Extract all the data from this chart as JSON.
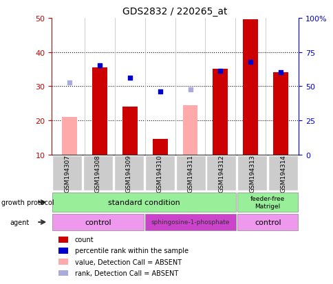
{
  "title": "GDS2832 / 220265_at",
  "samples": [
    "GSM194307",
    "GSM194308",
    "GSM194309",
    "GSM194310",
    "GSM194311",
    "GSM194312",
    "GSM194313",
    "GSM194314"
  ],
  "count_values": [
    null,
    35.5,
    24.0,
    14.5,
    null,
    35.0,
    49.5,
    34.0
  ],
  "count_absent_values": [
    21.0,
    null,
    null,
    null,
    24.5,
    null,
    null,
    null
  ],
  "rank_values": [
    null,
    36.0,
    32.5,
    28.5,
    null,
    34.5,
    37.0,
    34.0
  ],
  "rank_absent_values": [
    31.0,
    null,
    null,
    null,
    29.0,
    null,
    null,
    null
  ],
  "ylim_left": [
    10,
    50
  ],
  "ylim_right": [
    0,
    100
  ],
  "yticks_left": [
    10,
    20,
    30,
    40,
    50
  ],
  "yticks_right": [
    0,
    25,
    50,
    75,
    100
  ],
  "ytick_labels_right": [
    "0",
    "25",
    "50",
    "75",
    "100%"
  ],
  "legend_items": [
    {
      "color": "#cc0000",
      "label": "count"
    },
    {
      "color": "#0000cc",
      "label": "percentile rank within the sample"
    },
    {
      "color": "#ffaaaa",
      "label": "value, Detection Call = ABSENT"
    },
    {
      "color": "#aaaadd",
      "label": "rank, Detection Call = ABSENT"
    }
  ],
  "bar_width": 0.5,
  "count_color": "#cc0000",
  "count_absent_color": "#ffaaaa",
  "rank_color": "#0000cc",
  "rank_absent_color": "#aaaadd",
  "bg_color": "#ffffff",
  "grid_color": "#000000",
  "left_tick_color": "#cc0000",
  "right_tick_color": "#0000cc",
  "sample_box_color": "#cccccc",
  "protocol_color": "#99ee99",
  "agent_control_color": "#ee99ee",
  "agent_sphingo_color": "#cc44cc"
}
